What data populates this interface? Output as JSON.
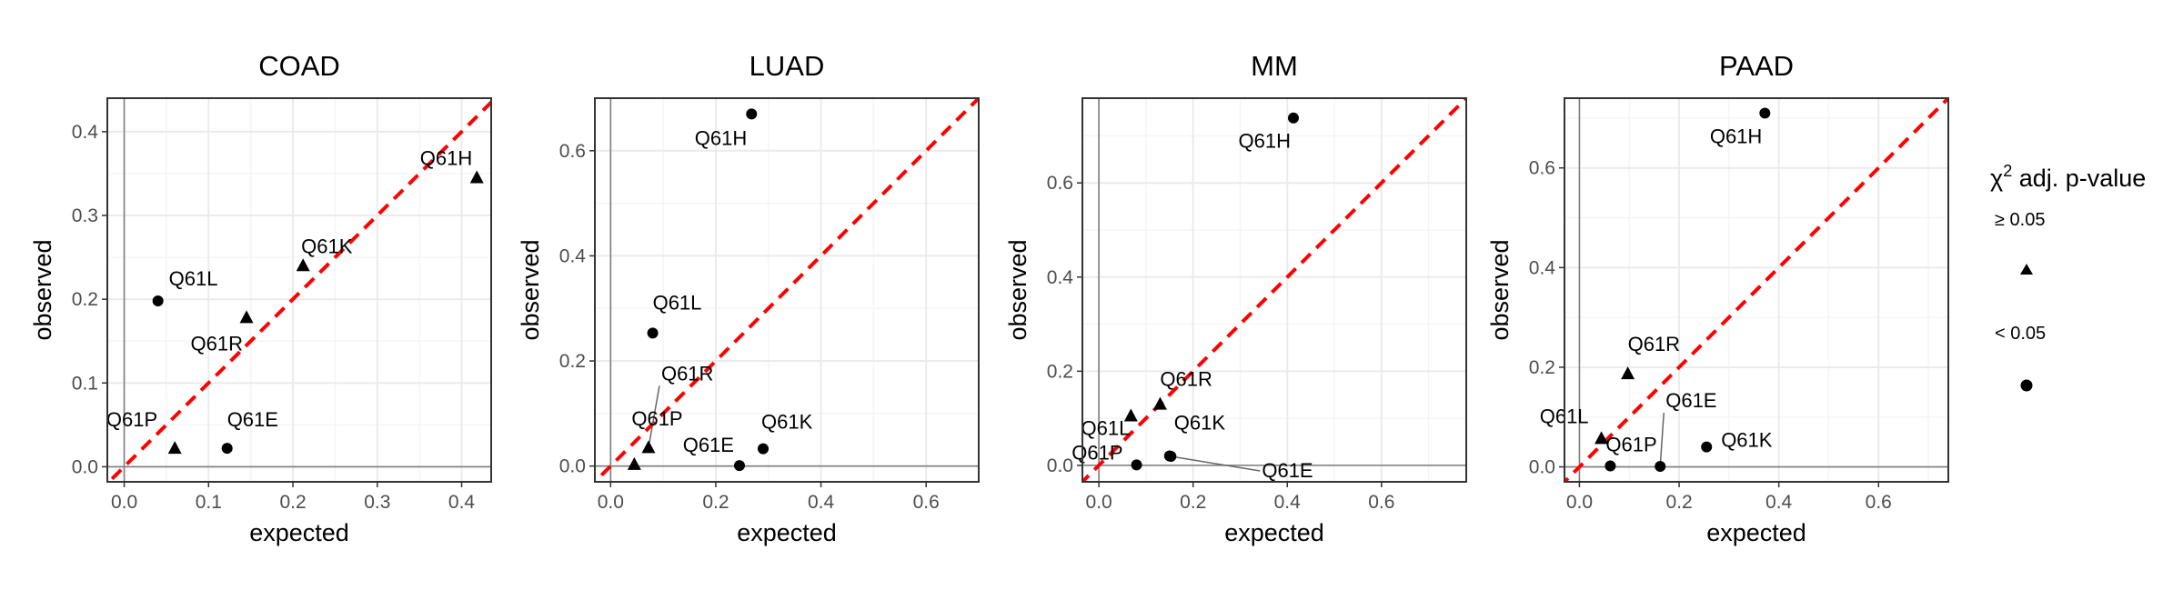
{
  "chart_data": [
    {
      "type": "scatter",
      "title": "COAD",
      "xlabel": "expected",
      "ylabel": "observed",
      "xlim": [
        -0.02,
        0.435
      ],
      "ylim": [
        -0.018,
        0.44
      ],
      "xticks": [
        0.0,
        0.1,
        0.2,
        0.3,
        0.4
      ],
      "yticks": [
        0.0,
        0.1,
        0.2,
        0.3,
        0.4
      ],
      "tick_decimals": 1,
      "reference_line": "y = x",
      "points": [
        {
          "label": "Q61H",
          "expected": 0.418,
          "observed": 0.345,
          "p_adj": "≥ 0.05"
        },
        {
          "label": "Q61K",
          "expected": 0.212,
          "observed": 0.24,
          "p_adj": "≥ 0.05"
        },
        {
          "label": "Q61L",
          "expected": 0.04,
          "observed": 0.198,
          "p_adj": "< 0.05"
        },
        {
          "label": "Q61R",
          "expected": 0.145,
          "observed": 0.178,
          "p_adj": "≥ 0.05"
        },
        {
          "label": "Q61P",
          "expected": 0.06,
          "observed": 0.022,
          "p_adj": "≥ 0.05"
        },
        {
          "label": "Q61E",
          "expected": 0.122,
          "observed": 0.022,
          "p_adj": "< 0.05"
        }
      ]
    },
    {
      "type": "scatter",
      "title": "LUAD",
      "xlabel": "expected",
      "ylabel": "observed",
      "xlim": [
        -0.03,
        0.7
      ],
      "ylim": [
        -0.03,
        0.7
      ],
      "xticks": [
        0.0,
        0.2,
        0.4,
        0.6
      ],
      "yticks": [
        0.0,
        0.2,
        0.4,
        0.6
      ],
      "tick_decimals": 1,
      "reference_line": "y = x",
      "points": [
        {
          "label": "Q61H",
          "expected": 0.268,
          "observed": 0.67,
          "p_adj": "< 0.05"
        },
        {
          "label": "Q61L",
          "expected": 0.08,
          "observed": 0.253,
          "p_adj": "< 0.05"
        },
        {
          "label": "Q61R",
          "expected": 0.072,
          "observed": 0.035,
          "p_adj": "≥ 0.05"
        },
        {
          "label": "Q61P",
          "expected": 0.045,
          "observed": 0.003,
          "p_adj": "≥ 0.05"
        },
        {
          "label": "Q61E",
          "expected": 0.245,
          "observed": 0.001,
          "p_adj": "< 0.05"
        },
        {
          "label": "Q61K",
          "expected": 0.29,
          "observed": 0.033,
          "p_adj": "< 0.05"
        }
      ]
    },
    {
      "type": "scatter",
      "title": "MM",
      "xlabel": "expected",
      "ylabel": "observed",
      "xlim": [
        -0.035,
        0.78
      ],
      "ylim": [
        -0.035,
        0.78
      ],
      "xticks": [
        0.0,
        0.2,
        0.4,
        0.6
      ],
      "yticks": [
        0.0,
        0.2,
        0.4,
        0.6
      ],
      "tick_decimals": 1,
      "reference_line": "y = x",
      "points": [
        {
          "label": "Q61H",
          "expected": 0.413,
          "observed": 0.738,
          "p_adj": "< 0.05"
        },
        {
          "label": "Q61R",
          "expected": 0.13,
          "observed": 0.13,
          "p_adj": "≥ 0.05"
        },
        {
          "label": "Q61L",
          "expected": 0.068,
          "observed": 0.105,
          "p_adj": "≥ 0.05"
        },
        {
          "label": "Q61K",
          "expected": 0.15,
          "observed": 0.02,
          "p_adj": "< 0.05"
        },
        {
          "label": "Q61E",
          "expected": 0.153,
          "observed": 0.019,
          "p_adj": "< 0.05"
        },
        {
          "label": "Q61P",
          "expected": 0.08,
          "observed": 0.001,
          "p_adj": "< 0.05"
        }
      ]
    },
    {
      "type": "scatter",
      "title": "PAAD",
      "xlabel": "expected",
      "ylabel": "observed",
      "xlim": [
        -0.03,
        0.74
      ],
      "ylim": [
        -0.03,
        0.74
      ],
      "xticks": [
        0.0,
        0.2,
        0.4,
        0.6
      ],
      "yticks": [
        0.0,
        0.2,
        0.4,
        0.6
      ],
      "tick_decimals": 1,
      "reference_line": "y = x",
      "points": [
        {
          "label": "Q61H",
          "expected": 0.372,
          "observed": 0.71,
          "p_adj": "< 0.05"
        },
        {
          "label": "Q61R",
          "expected": 0.097,
          "observed": 0.187,
          "p_adj": "≥ 0.05"
        },
        {
          "label": "Q61L",
          "expected": 0.044,
          "observed": 0.057,
          "p_adj": "≥ 0.05"
        },
        {
          "label": "Q61P",
          "expected": 0.062,
          "observed": 0.002,
          "p_adj": "< 0.05"
        },
        {
          "label": "Q61E",
          "expected": 0.162,
          "observed": 0.001,
          "p_adj": "< 0.05"
        },
        {
          "label": "Q61K",
          "expected": 0.255,
          "observed": 0.04,
          "p_adj": "< 0.05"
        }
      ]
    }
  ],
  "legend": {
    "title_symbol": "χ",
    "title_superscript": "2",
    "title_rest": " adj. p-value",
    "entries": [
      {
        "label": "≥ 0.05",
        "shape": "triangle"
      },
      {
        "label": "< 0.05",
        "shape": "circle"
      }
    ],
    "placement": "right"
  },
  "colors": {
    "reference_line": "#ff0000",
    "points": "#000000",
    "grid_major": "#ebebeb",
    "grid_minor": "#f5f5f5",
    "panel_border": "#333333",
    "zero_line": "#7f7f7f",
    "tick_text": "#4d4d4d"
  }
}
